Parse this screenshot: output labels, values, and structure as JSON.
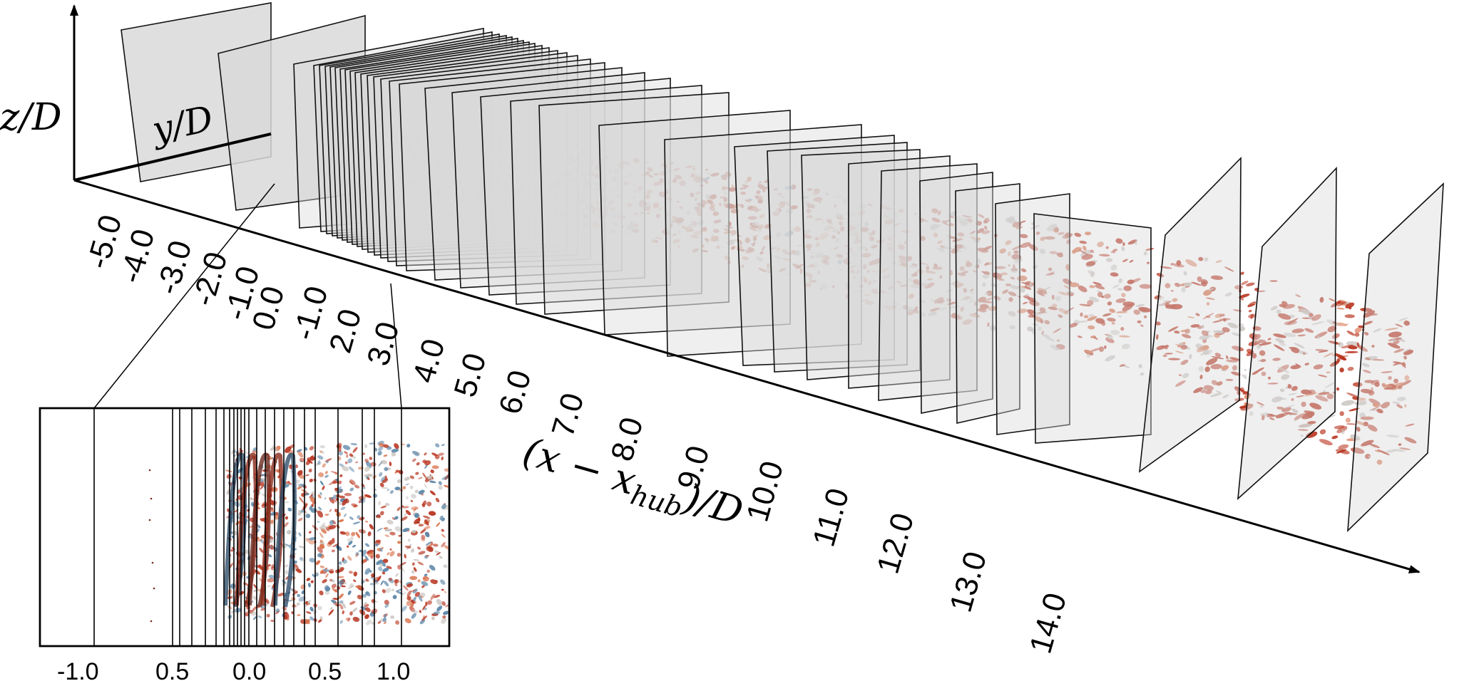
{
  "labels": {
    "z_axis": "z/D",
    "y_axis": "y/D",
    "x_axis_main": "(x − x",
    "x_axis_sub": "hub",
    "x_axis_tail": ")/D"
  },
  "main_ticks": [
    "-5.0",
    "-4.0",
    "-3.0",
    "-2.0",
    "-1.0",
    "0.0",
    "-1.0",
    "2.0",
    "3.0",
    "4.0",
    "5.0",
    "6.0",
    "7.0",
    "8.0",
    "9.0",
    "10.0",
    "11.0",
    "12.0",
    "13.0",
    "14.0"
  ],
  "inset_ticks": [
    "-1.0",
    "0.5",
    "0.0",
    "0.5",
    "1.0"
  ],
  "colors": {
    "plane_fill": "#d9d9d9",
    "plane_stroke": "#111111",
    "wake_red": "#b8341f",
    "wake_orange": "#d9714a",
    "wake_blue": "#5c86a8",
    "wake_grey": "#c9c4c0"
  }
}
